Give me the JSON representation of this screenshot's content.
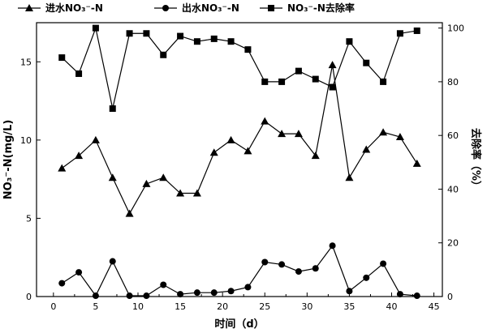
{
  "chart_data": {
    "type": "line",
    "xlabel": "时间（d）",
    "ylabel_left": "NO₃⁻-N(mg/L)",
    "ylabel_right": "去除率（%）",
    "xlim": [
      -2,
      46
    ],
    "ylim_left": [
      0,
      17.5
    ],
    "ylim_right": [
      0,
      102
    ],
    "x_ticks": [
      0,
      5,
      10,
      15,
      20,
      25,
      30,
      35,
      40,
      45
    ],
    "y_ticks_left": [
      0,
      5,
      10,
      15
    ],
    "y_ticks_right": [
      0,
      20,
      40,
      60,
      80,
      100
    ],
    "legend_position": "top",
    "grid": false,
    "series": [
      {
        "name": "进水NO₃⁻-N",
        "axis": "left",
        "marker": "triangle",
        "color": "#000000",
        "x": [
          1,
          3,
          5,
          7,
          9,
          11,
          13,
          15,
          17,
          19,
          21,
          23,
          25,
          27,
          29,
          31,
          33,
          35,
          37,
          39,
          41,
          43
        ],
        "values": [
          8.2,
          9.0,
          10.0,
          7.6,
          5.3,
          7.2,
          7.6,
          6.6,
          6.6,
          9.2,
          10.0,
          9.3,
          11.2,
          10.4,
          10.4,
          9.0,
          14.8,
          7.6,
          9.4,
          10.5,
          10.2,
          8.5
        ]
      },
      {
        "name": "出水NO₃⁻-N",
        "axis": "left",
        "marker": "circle",
        "color": "#000000",
        "x": [
          1,
          3,
          5,
          7,
          9,
          11,
          13,
          15,
          17,
          19,
          21,
          23,
          25,
          27,
          29,
          31,
          33,
          35,
          37,
          39,
          41,
          43
        ],
        "values": [
          0.85,
          1.55,
          0.05,
          2.25,
          0.05,
          0.05,
          0.75,
          0.15,
          0.25,
          0.25,
          0.35,
          0.6,
          2.2,
          2.05,
          1.6,
          1.8,
          3.25,
          0.35,
          1.2,
          2.1,
          0.15,
          0.05
        ]
      },
      {
        "name": "NO₃⁻-N去除率",
        "axis": "right",
        "marker": "square",
        "color": "#000000",
        "x": [
          1,
          3,
          5,
          7,
          9,
          11,
          13,
          15,
          17,
          19,
          21,
          23,
          25,
          27,
          29,
          31,
          33,
          35,
          37,
          39,
          41,
          43
        ],
        "values": [
          89,
          83,
          100,
          70,
          98,
          98,
          90,
          97,
          95,
          96,
          95,
          92,
          80,
          80,
          84,
          81,
          78,
          95,
          87,
          80,
          98,
          99
        ]
      }
    ]
  }
}
